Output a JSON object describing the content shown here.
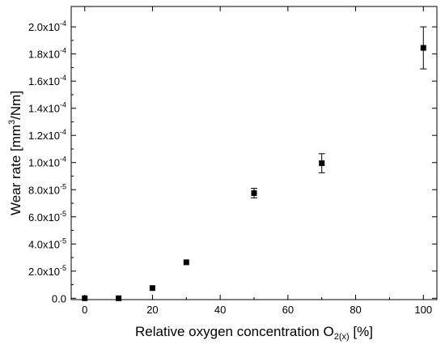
{
  "chart_data": {
    "type": "scatter",
    "xlabel_main": "Relative oxygen concentration O",
    "xlabel_sub": "2(x)",
    "xlabel_tail": " [%]",
    "ylabel_main": "Wear rate [mm",
    "ylabel_sup": "3",
    "ylabel_tail": "/Nm]",
    "xlim": [
      -4,
      104
    ],
    "ylim": [
      -1e-06,
      0.000215
    ],
    "x_ticks": [
      0,
      20,
      40,
      60,
      80,
      100
    ],
    "x_tick_labels": [
      "0",
      "20",
      "40",
      "60",
      "80",
      "100"
    ],
    "y_ticks": [
      0,
      2e-05,
      4e-05,
      6e-05,
      8e-05,
      0.0001,
      0.00012,
      0.00014,
      0.00016,
      0.00018,
      0.0002
    ],
    "y_tick_labels": [
      {
        "mant": "0.0",
        "exp": ""
      },
      {
        "mant": "2.0x10",
        "exp": "-5"
      },
      {
        "mant": "4.0x10",
        "exp": "-5"
      },
      {
        "mant": "6.0x10",
        "exp": "-5"
      },
      {
        "mant": "8.0x10",
        "exp": "-5"
      },
      {
        "mant": "1.0x10",
        "exp": "-4"
      },
      {
        "mant": "1.2x10",
        "exp": "-4"
      },
      {
        "mant": "1.4x10",
        "exp": "-4"
      },
      {
        "mant": "1.6x10",
        "exp": "-4"
      },
      {
        "mant": "1.8x10",
        "exp": "-4"
      },
      {
        "mant": "2.0x10",
        "exp": "-4"
      }
    ],
    "points": [
      {
        "x": 0,
        "y": 0.0,
        "err": 0
      },
      {
        "x": 10,
        "y": 0.0,
        "err": 0
      },
      {
        "x": 20,
        "y": 7.5e-06,
        "err": 0
      },
      {
        "x": 30,
        "y": 2.65e-05,
        "err": 0
      },
      {
        "x": 50,
        "y": 7.75e-05,
        "err": 3.5e-06
      },
      {
        "x": 70,
        "y": 9.95e-05,
        "err": 7e-06
      },
      {
        "x": 100,
        "y": 0.0001845,
        "err": 1.55e-05
      }
    ],
    "grid": false,
    "marker": "square",
    "color": "#000000"
  }
}
